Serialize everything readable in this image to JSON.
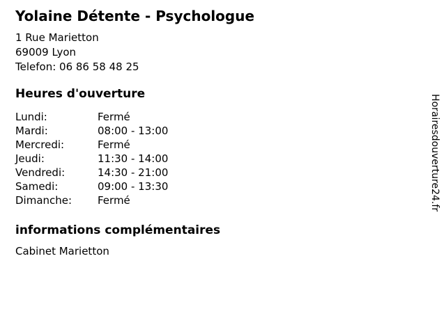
{
  "header": {
    "title": "Yolaine Détente - Psychologue",
    "address_line1": "1 Rue Marietton",
    "address_line2": "69009 Lyon",
    "phone": "Telefon: 06 86 58 48 25"
  },
  "hours": {
    "heading": "Heures d'ouverture",
    "rows": [
      {
        "day": "Lundi:",
        "time": "Fermé"
      },
      {
        "day": "Mardi:",
        "time": "08:00 - 13:00"
      },
      {
        "day": "Mercredi:",
        "time": "Fermé"
      },
      {
        "day": "Jeudi:",
        "time": "11:30 - 14:00"
      },
      {
        "day": "Vendredi:",
        "time": "14:30 - 21:00"
      },
      {
        "day": "Samedi:",
        "time": "09:00 - 13:30"
      },
      {
        "day": "Dimanche:",
        "time": "Fermé"
      }
    ]
  },
  "extra_info": {
    "heading": "informations complémentaires",
    "text": "Cabinet Marietton"
  },
  "watermark": {
    "text": "Horairesdouverture24.fr"
  },
  "colors": {
    "text": "#000000",
    "background": "#ffffff"
  }
}
